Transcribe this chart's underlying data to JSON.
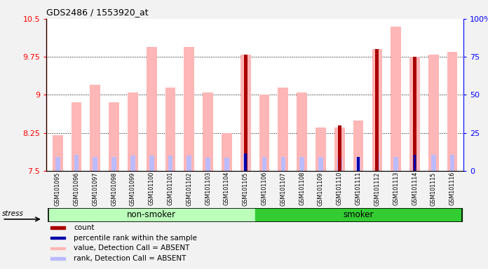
{
  "title": "GDS2486 / 1553920_at",
  "samples": [
    "GSM101095",
    "GSM101096",
    "GSM101097",
    "GSM101098",
    "GSM101099",
    "GSM101100",
    "GSM101101",
    "GSM101102",
    "GSM101103",
    "GSM101104",
    "GSM101105",
    "GSM101106",
    "GSM101107",
    "GSM101108",
    "GSM101109",
    "GSM101110",
    "GSM101111",
    "GSM101112",
    "GSM101113",
    "GSM101114",
    "GSM101115",
    "GSM101116"
  ],
  "nonsmoker_count": 11,
  "value": [
    8.2,
    8.85,
    9.2,
    8.85,
    9.05,
    9.95,
    9.15,
    9.95,
    9.05,
    8.25,
    9.8,
    9.0,
    9.15,
    9.05,
    8.35,
    8.35,
    8.5,
    9.9,
    10.35,
    9.75,
    9.8,
    9.85
  ],
  "rank_val": [
    7.78,
    7.82,
    7.77,
    7.77,
    7.8,
    7.8,
    7.8,
    7.8,
    7.76,
    7.76,
    7.84,
    7.78,
    7.78,
    7.78,
    7.78,
    7.76,
    7.78,
    7.84,
    7.78,
    7.82,
    7.82,
    7.82
  ],
  "count_val": [
    0,
    0,
    0,
    0,
    0,
    0,
    0,
    0,
    0,
    0,
    9.8,
    0,
    0,
    0,
    0,
    8.4,
    0,
    9.9,
    0,
    9.75,
    0,
    0
  ],
  "percentile_val": [
    0,
    0,
    0,
    0,
    0,
    0,
    0,
    0,
    0,
    0,
    7.84,
    0,
    0,
    0,
    0,
    0,
    7.78,
    0,
    0,
    7.82,
    0,
    0
  ],
  "ylim_left": [
    7.5,
    10.5
  ],
  "yticks_left": [
    7.5,
    8.25,
    9.0,
    9.75,
    10.5
  ],
  "ytick_labels_left": [
    "7.5",
    "8.25",
    "9",
    "9.75",
    "10.5"
  ],
  "ytick_labels_right": [
    "0",
    "25",
    "50",
    "75",
    "100%"
  ],
  "hline_values": [
    8.25,
    9.0,
    9.75
  ],
  "color_value": "#FFB6B6",
  "color_rank": "#BBBBFF",
  "color_count": "#AA0000",
  "color_percentile": "#0000AA",
  "color_nonsmoker_light": "#BBFFBB",
  "color_smoker_green": "#33CC33",
  "color_bg_gray": "#D8D8D8",
  "color_plot_bg": "#FFFFFF",
  "stress_label": "stress",
  "nonsmoker_label": "non-smoker",
  "smoker_label": "smoker",
  "legend_items": [
    {
      "color": "#AA0000",
      "label": "count"
    },
    {
      "color": "#0000AA",
      "label": "percentile rank within the sample"
    },
    {
      "color": "#FFB6B6",
      "label": "value, Detection Call = ABSENT"
    },
    {
      "color": "#BBBBFF",
      "label": "rank, Detection Call = ABSENT"
    }
  ],
  "fig_bg": "#F2F2F2"
}
